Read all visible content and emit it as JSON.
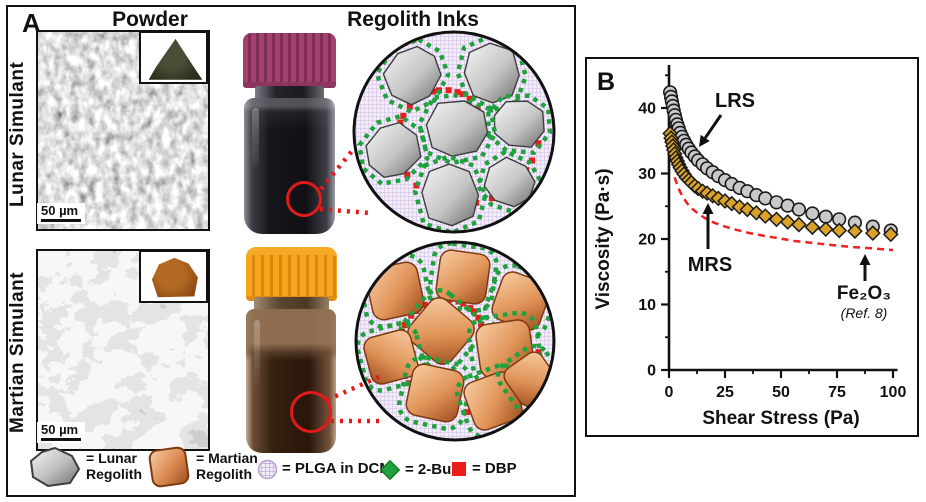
{
  "figure": {
    "panel_a_label": "A",
    "panel_b_label": "B",
    "columns": {
      "powder": "Powder",
      "inks": "Regolith Inks"
    },
    "rows": [
      {
        "label": "Lunar Simulant",
        "scale_bar": "50 µm"
      },
      {
        "label": "Martian Simulant",
        "scale_bar": "50 µm"
      }
    ],
    "legend": [
      {
        "icon": "lunar-regolith-particle",
        "label": "= Lunar Regolith"
      },
      {
        "icon": "martian-regolith-particle",
        "label": "= Martian Regolith"
      },
      {
        "icon": "plga-grid-circle",
        "label": "= PLGA in DCM"
      },
      {
        "icon": "green-diamond",
        "label": "= 2-Bu"
      },
      {
        "icon": "red-square",
        "label": "= DBP"
      }
    ],
    "colors": {
      "lunar_cap": "#a3406e",
      "martian_cap": "#f6a41c",
      "lunar_ink": "#141418",
      "martian_ink": "#2a160a",
      "plga_bg": "#f2edf8",
      "plga_grid": "#cfbce2",
      "green_2bu": "#1fa23d",
      "red_dbp": "#ea1c1c",
      "highlight_red": "#e41a1a"
    }
  },
  "chart_data": {
    "type": "scatter",
    "title": "",
    "xlabel": "Shear Stress (Pa)",
    "ylabel": "Viscosity (Pa·s)",
    "xlim": [
      0,
      102
    ],
    "ylim": [
      0,
      47
    ],
    "xticks": [
      0,
      25,
      50,
      75,
      100
    ],
    "yticks": [
      0,
      10,
      20,
      30,
      40
    ],
    "grid": false,
    "legend_position": "inline-annotations",
    "series": [
      {
        "name": "LRS",
        "marker": "circle",
        "color": "#c9c9c9",
        "edge": "#1a1a1a",
        "points": [
          [
            0.5,
            42.4
          ],
          [
            0.9,
            41.7
          ],
          [
            1.3,
            41.0
          ],
          [
            1.7,
            40.3
          ],
          [
            2.1,
            39.6
          ],
          [
            2.6,
            38.9
          ],
          [
            3.1,
            38.2
          ],
          [
            3.7,
            37.5
          ],
          [
            4.3,
            36.9
          ],
          [
            5.0,
            36.2
          ],
          [
            5.8,
            35.6
          ],
          [
            6.7,
            35.0
          ],
          [
            7.7,
            34.4
          ],
          [
            8.8,
            33.8
          ],
          [
            10,
            33.2
          ],
          [
            11.5,
            32.6
          ],
          [
            13,
            32.0
          ],
          [
            15,
            31.4
          ],
          [
            17,
            30.8
          ],
          [
            19.5,
            30.2
          ],
          [
            22,
            29.6
          ],
          [
            25,
            29.0
          ],
          [
            28,
            28.4
          ],
          [
            31.5,
            27.8
          ],
          [
            35,
            27.3
          ],
          [
            39,
            26.7
          ],
          [
            43,
            26.2
          ],
          [
            48,
            25.6
          ],
          [
            53,
            25.1
          ],
          [
            58,
            24.5
          ],
          [
            64,
            23.9
          ],
          [
            70,
            23.4
          ],
          [
            76,
            23.0
          ],
          [
            83,
            22.5
          ],
          [
            91,
            21.9
          ],
          [
            99,
            21.3
          ]
        ]
      },
      {
        "name": "MRS",
        "marker": "diamond",
        "color": "#dba22a",
        "edge": "#1a1a1a",
        "points": [
          [
            0.5,
            36.1
          ],
          [
            0.9,
            35.4
          ],
          [
            1.3,
            34.8
          ],
          [
            1.7,
            34.2
          ],
          [
            2.1,
            33.6
          ],
          [
            2.6,
            33.0
          ],
          [
            3.1,
            32.4
          ],
          [
            3.7,
            31.9
          ],
          [
            4.3,
            31.4
          ],
          [
            5.0,
            30.9
          ],
          [
            5.8,
            30.4
          ],
          [
            6.7,
            29.9
          ],
          [
            7.7,
            29.4
          ],
          [
            8.8,
            29.0
          ],
          [
            10,
            28.6
          ],
          [
            11.5,
            28.1
          ],
          [
            13,
            27.7
          ],
          [
            15,
            27.3
          ],
          [
            17,
            27.0
          ],
          [
            19.5,
            26.6
          ],
          [
            22,
            26.2
          ],
          [
            25,
            25.8
          ],
          [
            28,
            25.4
          ],
          [
            31.5,
            24.9
          ],
          [
            35,
            24.5
          ],
          [
            39,
            24.0
          ],
          [
            43,
            23.5
          ],
          [
            48,
            23.0
          ],
          [
            53,
            22.6
          ],
          [
            58,
            22.2
          ],
          [
            64,
            21.8
          ],
          [
            70,
            21.5
          ],
          [
            76,
            21.3
          ],
          [
            83,
            21.2
          ],
          [
            91,
            20.9
          ],
          [
            99,
            20.7
          ]
        ]
      },
      {
        "name": "Fe2O3 (Ref. 8)",
        "marker": "none",
        "line": "dashed",
        "color": "#ef2020",
        "points": [
          [
            2.5,
            29.4
          ],
          [
            4,
            27.9
          ],
          [
            6,
            26.5
          ],
          [
            8,
            25.5
          ],
          [
            10,
            24.7
          ],
          [
            13,
            23.9
          ],
          [
            16,
            23.2
          ],
          [
            20,
            22.5
          ],
          [
            25,
            21.9
          ],
          [
            30,
            21.4
          ],
          [
            36,
            20.9
          ],
          [
            42,
            20.5
          ],
          [
            49,
            20.1
          ],
          [
            56,
            19.7
          ],
          [
            64,
            19.4
          ],
          [
            72,
            19.1
          ],
          [
            81,
            18.8
          ],
          [
            90,
            18.6
          ],
          [
            100,
            18.3
          ]
        ]
      }
    ],
    "annotations": [
      {
        "id": "lrs",
        "text": "LRS"
      },
      {
        "id": "mrs",
        "text": "MRS"
      },
      {
        "id": "fe2o3",
        "text": "Fe₂O₃",
        "note": "(Ref. 8)"
      }
    ]
  }
}
